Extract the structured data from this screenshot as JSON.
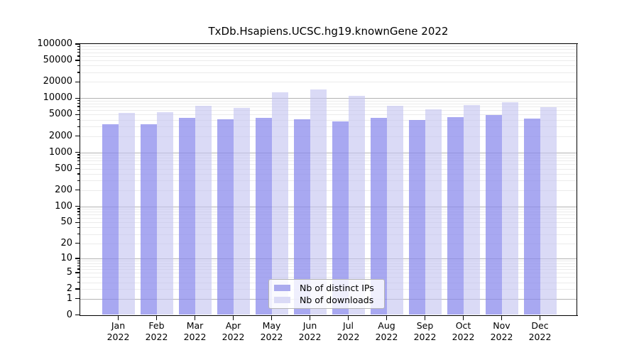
{
  "chart_data": {
    "type": "bar",
    "title": "TxDb.Hsapiens.UCSC.hg19.knownGene 2022",
    "categories": [
      "Jan",
      "Feb",
      "Mar",
      "Apr",
      "May",
      "Jun",
      "Jul",
      "Aug",
      "Sep",
      "Oct",
      "Nov",
      "Dec"
    ],
    "year_label": "2022",
    "series": [
      {
        "name": "Nb of distinct IPs",
        "color": "#aaaaee",
        "fill": "rgba(134,134,235,0.72)",
        "values": [
          3350,
          3350,
          4300,
          4100,
          4300,
          4100,
          3700,
          4300,
          4000,
          4450,
          4900,
          4200
        ]
      },
      {
        "name": "Nb of downloads",
        "color": "#dadaf6",
        "fill": "rgba(196,196,240,0.62)",
        "values": [
          5400,
          5500,
          7150,
          6700,
          13000,
          14700,
          10900,
          7300,
          6300,
          7400,
          8400,
          6800
        ]
      }
    ],
    "scale": "log1p",
    "ylim": [
      0,
      100000
    ],
    "y_tick_labels": [
      "0",
      "1",
      "2",
      "5",
      "10",
      "20",
      "50",
      "100",
      "200",
      "500",
      "1000",
      "2000",
      "5000",
      "10000",
      "20000",
      "50000",
      "100000"
    ],
    "grid": true,
    "legend_position": "lower center",
    "colors": {
      "major_grid": "#b3b3b3",
      "minor_grid": "#ebebeb",
      "axis": "#000000",
      "background": "#ffffff"
    }
  }
}
